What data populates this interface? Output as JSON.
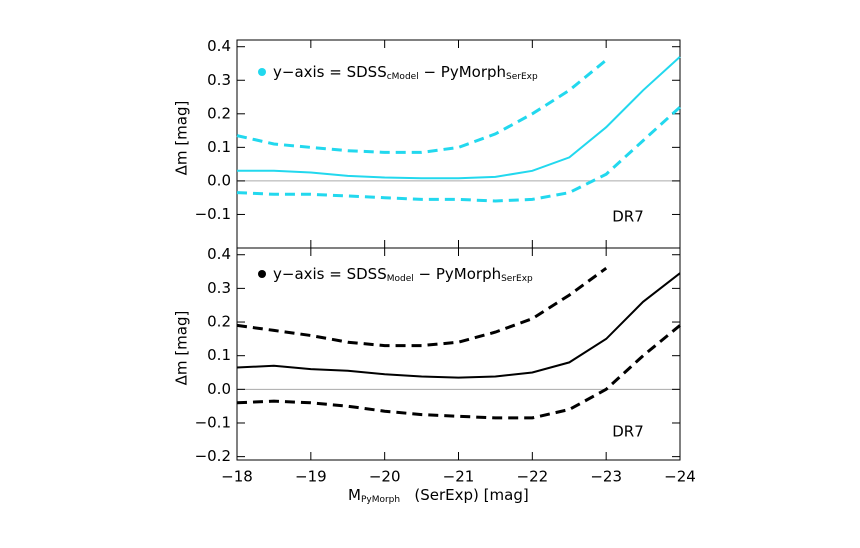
{
  "chart_data": [
    {
      "type": "line",
      "annotation": "DR7",
      "legend_label": [
        "y−axis = SDSS",
        "cModel",
        " − PyMorph",
        "SerExp"
      ],
      "legend_marker_color": "#22d8ee",
      "ylabel": "Δm [mag]",
      "x": [
        -18,
        -18.5,
        -19,
        -19.5,
        -20,
        -20.5,
        -21,
        -21.5,
        -22,
        -22.5,
        -23,
        -23.5,
        -24
      ],
      "series": [
        {
          "color": "#22d8ee",
          "dash": false,
          "values": [
            0.03,
            0.03,
            0.025,
            0.015,
            0.01,
            0.008,
            0.008,
            0.012,
            0.03,
            0.07,
            0.16,
            0.27,
            0.37
          ]
        },
        {
          "color": "#22d8ee",
          "dash": true,
          "values": [
            0.135,
            0.11,
            0.1,
            0.09,
            0.085,
            0.085,
            0.1,
            0.14,
            0.2,
            0.27,
            0.36,
            null,
            null
          ]
        },
        {
          "color": "#22d8ee",
          "dash": true,
          "values": [
            -0.035,
            -0.04,
            -0.04,
            -0.045,
            -0.05,
            -0.055,
            -0.055,
            -0.06,
            -0.055,
            -0.035,
            0.02,
            0.12,
            0.22
          ]
        }
      ],
      "xlim": [
        -18,
        -24
      ],
      "xticks": [
        -18,
        -19,
        -20,
        -21,
        -22,
        -23,
        -24
      ],
      "ylim": [
        -0.2,
        0.42
      ],
      "yticks": [
        {
          "value": -0.1,
          "label": "−0.1"
        },
        {
          "value": 0,
          "label": "0.0"
        },
        0.1,
        0.2,
        0.3,
        0.4
      ],
      "zero_line": true
    },
    {
      "type": "line",
      "annotation": "DR7",
      "legend_label": [
        "y−axis = SDSS",
        "Model",
        " − PyMorph",
        "SerExp"
      ],
      "legend_marker_color": "#000000",
      "ylabel": "Δm [mag]",
      "xlabel": [
        "M",
        "PyMorph",
        "   (SerExp) [mag]"
      ],
      "x": [
        -18,
        -18.5,
        -19,
        -19.5,
        -20,
        -20.5,
        -21,
        -21.5,
        -22,
        -22.5,
        -23,
        -23.5,
        -24
      ],
      "series": [
        {
          "color": "#000000",
          "dash": false,
          "values": [
            0.065,
            0.07,
            0.06,
            0.055,
            0.045,
            0.038,
            0.035,
            0.038,
            0.05,
            0.08,
            0.15,
            0.26,
            0.345
          ]
        },
        {
          "color": "#000000",
          "dash": true,
          "values": [
            0.19,
            0.175,
            0.16,
            0.14,
            0.13,
            0.13,
            0.14,
            0.17,
            0.21,
            0.28,
            0.36,
            null,
            null
          ]
        },
        {
          "color": "#000000",
          "dash": true,
          "values": [
            -0.04,
            -0.035,
            -0.04,
            -0.05,
            -0.065,
            -0.075,
            -0.08,
            -0.085,
            -0.085,
            -0.06,
            0.0,
            0.1,
            0.19
          ]
        }
      ],
      "xlim": [
        -18,
        -24
      ],
      "xticks": [
        {
          "value": -18,
          "label": "−18"
        },
        {
          "value": -19,
          "label": "−19"
        },
        {
          "value": -20,
          "label": "−20"
        },
        {
          "value": -21,
          "label": "−21"
        },
        {
          "value": -22,
          "label": "−22"
        },
        {
          "value": -23,
          "label": "−23"
        },
        {
          "value": -24,
          "label": "−24"
        }
      ],
      "ylim": [
        -0.21,
        0.42
      ],
      "yticks": [
        {
          "value": -0.2,
          "label": "−0.2"
        },
        {
          "value": -0.1,
          "label": "−0.1"
        },
        {
          "value": 0,
          "label": "0.0"
        },
        0.1,
        0.2,
        0.3,
        0.4
      ],
      "zero_line": true
    }
  ]
}
